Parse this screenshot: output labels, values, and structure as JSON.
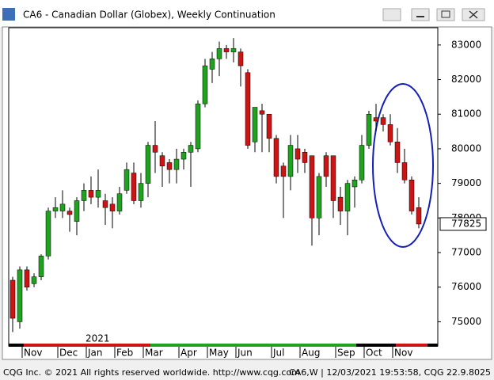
{
  "chart_data": {
    "type": "candlestick",
    "title": "CA6 - Canadian Dollar (Globex), Weekly Continuation",
    "year_label": "2021",
    "footer_left": "CQG Inc. © 2021 All rights reserved worldwide. http://www.cqg.com",
    "footer_right": "CA6,W | 12/03/2021 19:53:58, CQG 22.9.8025",
    "categories": [
      null,
      null,
      "Nov",
      null,
      null,
      null,
      null,
      "Dec",
      null,
      null,
      null,
      "Jan",
      null,
      null,
      null,
      "Feb",
      null,
      null,
      null,
      "Mar",
      null,
      null,
      null,
      null,
      "Apr",
      null,
      null,
      null,
      "May",
      null,
      null,
      null,
      "Jun",
      null,
      null,
      null,
      null,
      "Jul",
      null,
      null,
      null,
      "Aug",
      null,
      null,
      null,
      null,
      "Sep",
      null,
      null,
      null,
      "Oct",
      null,
      null,
      null,
      "Nov",
      null,
      null,
      null
    ],
    "open": [
      76200,
      75000,
      76500,
      76100,
      76300,
      76900,
      78200,
      78200,
      78200,
      77900,
      78500,
      78800,
      78600,
      78500,
      78400,
      78200,
      78800,
      79300,
      78500,
      79000,
      80100,
      79800,
      79600,
      79400,
      79700,
      79900,
      80000,
      81300,
      82300,
      82600,
      82900,
      82800,
      82800,
      82200,
      80200,
      81100,
      81000,
      80300,
      79500,
      79200,
      80000,
      79900,
      79800,
      78000,
      79800,
      79800,
      78600,
      78200,
      78900,
      79100,
      80100,
      80900,
      80900,
      80700,
      80200,
      79600,
      79100,
      78300
    ],
    "high": [
      76300,
      76600,
      76600,
      76400,
      76950,
      78300,
      78600,
      78800,
      78300,
      78600,
      79000,
      79200,
      79400,
      78700,
      78600,
      78900,
      79600,
      79600,
      79300,
      80200,
      80800,
      79900,
      79700,
      80000,
      80000,
      80200,
      81400,
      82600,
      82800,
      83100,
      83000,
      83200,
      82900,
      82300,
      81200,
      81300,
      81000,
      80400,
      79600,
      80400,
      80400,
      80000,
      79800,
      79300,
      79900,
      79800,
      78900,
      79100,
      79200,
      80400,
      81100,
      81300,
      81000,
      81000,
      80600,
      80000,
      79200,
      78600
    ],
    "low": [
      74700,
      74800,
      75900,
      76000,
      76200,
      76800,
      78000,
      78000,
      77600,
      77500,
      78200,
      78400,
      78300,
      77800,
      77700,
      78100,
      78700,
      78400,
      78300,
      78600,
      79300,
      78900,
      79000,
      79000,
      79400,
      78900,
      79900,
      81200,
      81900,
      82100,
      82600,
      82500,
      81800,
      80000,
      79900,
      79900,
      79900,
      79000,
      78000,
      78800,
      79300,
      79300,
      77200,
      77500,
      78900,
      78000,
      77800,
      77500,
      78300,
      79000,
      80000,
      80500,
      80500,
      80100,
      79300,
      79000,
      78100,
      77700
    ],
    "close": [
      75100,
      76500,
      76000,
      76300,
      76900,
      78200,
      78300,
      78400,
      78100,
      78500,
      78800,
      78600,
      78800,
      78300,
      78200,
      78700,
      79400,
      78500,
      79000,
      80100,
      79900,
      79500,
      79400,
      79700,
      79900,
      80100,
      81300,
      82400,
      82600,
      82900,
      82800,
      82900,
      82400,
      80100,
      81200,
      81000,
      80300,
      79200,
      79200,
      80100,
      79700,
      79600,
      78000,
      79200,
      79200,
      78500,
      78200,
      79000,
      79100,
      80100,
      81000,
      80800,
      80700,
      80200,
      79600,
      79100,
      78200,
      77825
    ],
    "up_color": "#1fa21f",
    "down_color": "#cc1414",
    "ylim": [
      74300,
      83500
    ],
    "yticks": [
      75000,
      76000,
      77000,
      78000,
      79000,
      80000,
      81000,
      82000,
      83000
    ],
    "grid": false
  }
}
